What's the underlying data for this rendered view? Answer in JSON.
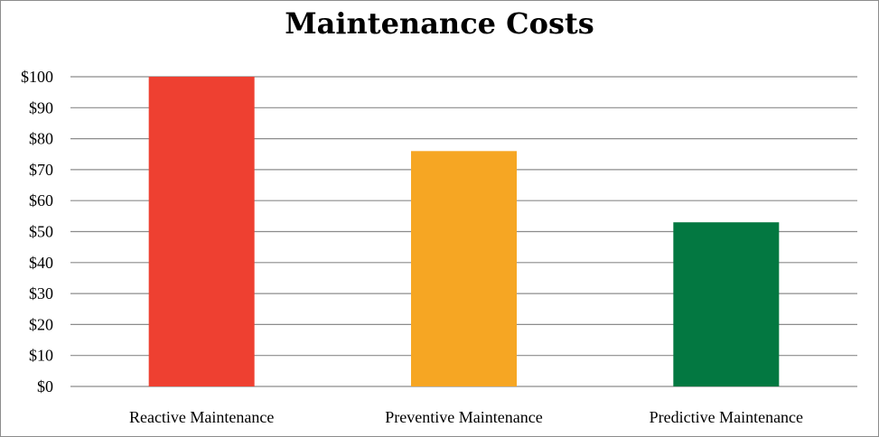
{
  "chart_data": {
    "type": "bar",
    "title": "Maintenance Costs",
    "categories": [
      "Reactive Maintenance",
      "Preventive Maintenance",
      "Predictive Maintenance"
    ],
    "values": [
      100,
      76,
      53
    ],
    "colors": [
      "#ee4031",
      "#f6a623",
      "#037841"
    ],
    "ylim": [
      0,
      100
    ],
    "yticks": [
      0,
      10,
      20,
      30,
      40,
      50,
      60,
      70,
      80,
      90,
      100
    ],
    "ytick_labels": [
      "$0",
      "$10",
      "$20",
      "$30",
      "$40",
      "$50",
      "$60",
      "$70",
      "$80",
      "$90",
      "$100"
    ],
    "xlabel": "",
    "ylabel": "",
    "grid": true,
    "legend": "none"
  }
}
